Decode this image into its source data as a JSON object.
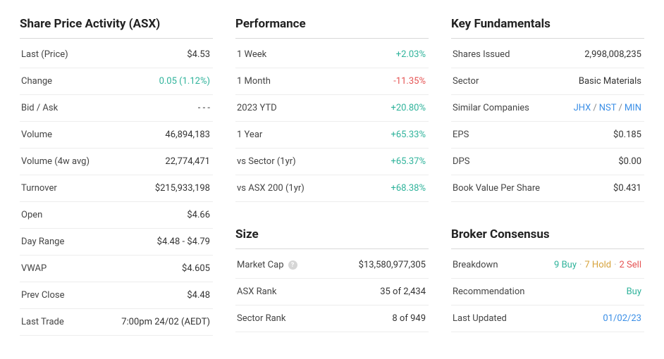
{
  "sharePrice": {
    "title": "Share Price Activity (ASX)",
    "rows": {
      "last": {
        "label": "Last (Price)",
        "value": "$4.53"
      },
      "change": {
        "label": "Change",
        "value": "0.05 (1.12%)"
      },
      "bidAsk": {
        "label": "Bid / Ask",
        "value": "- - -"
      },
      "volume": {
        "label": "Volume",
        "value": "46,894,183"
      },
      "volume4w": {
        "label": "Volume (4w avg)",
        "value": "22,774,471"
      },
      "turnover": {
        "label": "Turnover",
        "value": "$215,933,198"
      },
      "open": {
        "label": "Open",
        "value": "$4.66"
      },
      "dayRange": {
        "label": "Day Range",
        "value": "$4.48 - $4.79"
      },
      "vwap": {
        "label": "VWAP",
        "value": "$4.605"
      },
      "prevClose": {
        "label": "Prev Close",
        "value": "$4.48"
      },
      "lastTrade": {
        "label": "Last Trade",
        "value": "7:00pm 24/02 (AEDT)"
      }
    }
  },
  "performance": {
    "title": "Performance",
    "rows": {
      "week1": {
        "label": "1 Week",
        "value": "+2.03%"
      },
      "month1": {
        "label": "1 Month",
        "value": "-11.35%"
      },
      "ytd": {
        "label": "2023 YTD",
        "value": "+20.80%"
      },
      "year1": {
        "label": "1 Year",
        "value": "+65.33%"
      },
      "vsSector": {
        "label": "vs Sector (1yr)",
        "value": "+65.37%"
      },
      "vsAsx200": {
        "label": "vs ASX 200 (1yr)",
        "value": "+68.38%"
      }
    }
  },
  "size": {
    "title": "Size",
    "rows": {
      "marketCap": {
        "label": "Market Cap",
        "value": "$13,580,977,305"
      },
      "asxRank": {
        "label": "ASX Rank",
        "value": "35 of 2,434"
      },
      "sectorRank": {
        "label": "Sector Rank",
        "value": "8 of 949"
      }
    }
  },
  "fundamentals": {
    "title": "Key Fundamentals",
    "rows": {
      "sharesIssued": {
        "label": "Shares Issued",
        "value": "2,998,008,235"
      },
      "sector": {
        "label": "Sector",
        "value": "Basic Materials"
      },
      "similar": {
        "label": "Similar Companies",
        "c1": "JHX",
        "c2": "NST",
        "c3": "MIN",
        "sep": "/"
      },
      "eps": {
        "label": "EPS",
        "value": "$0.185"
      },
      "dps": {
        "label": "DPS",
        "value": "$0.00"
      },
      "bookValue": {
        "label": "Book Value Per Share",
        "value": "$0.431"
      }
    }
  },
  "broker": {
    "title": "Broker Consensus",
    "rows": {
      "breakdown": {
        "label": "Breakdown",
        "buy": "9 Buy",
        "hold": "7 Hold",
        "sell": "2 Sell",
        "dot": "·"
      },
      "recommendation": {
        "label": "Recommendation",
        "value": "Buy"
      },
      "lastUpdated": {
        "label": "Last Updated",
        "value": "01/02/23"
      }
    }
  },
  "helpGlyph": "?"
}
